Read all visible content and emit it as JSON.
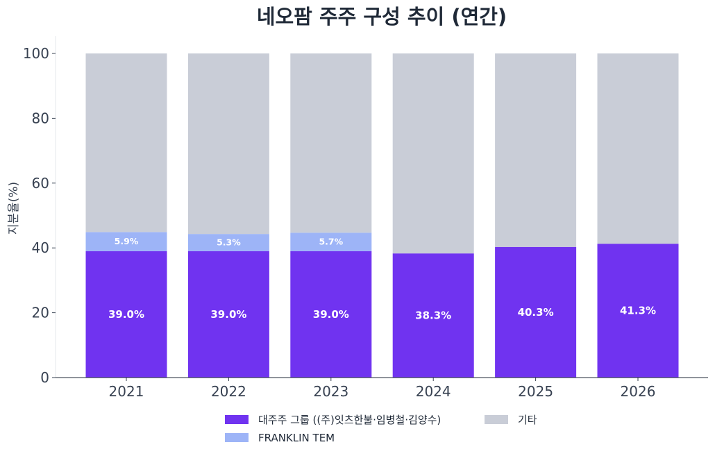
{
  "chart_data": {
    "type": "bar",
    "stacked": true,
    "title": "네오팜 주주 구성 추이 (연간)",
    "ylabel": "지분율(%)",
    "xlabel": "",
    "ylim": [
      0,
      100
    ],
    "yticks": [
      0,
      20,
      40,
      60,
      80,
      100
    ],
    "categories": [
      "2021",
      "2022",
      "2023",
      "2024",
      "2025",
      "2026"
    ],
    "series": [
      {
        "name": "대주주 그룹 ((주)잇츠한불·임병철·김양수)",
        "color": "#7033f0",
        "values": [
          39.0,
          39.0,
          39.0,
          38.3,
          40.3,
          41.3
        ],
        "labels": [
          "39.0%",
          "39.0%",
          "39.0%",
          "38.3%",
          "40.3%",
          "41.3%"
        ]
      },
      {
        "name": "FRANKLIN TEM",
        "color": "#9db4f7",
        "values": [
          5.9,
          5.3,
          5.7,
          0,
          0,
          0
        ],
        "labels": [
          "5.9%",
          "5.3%",
          "5.7%",
          "",
          "",
          ""
        ]
      },
      {
        "name": "기타",
        "color": "#c9cdd7",
        "values": [
          55.1,
          55.7,
          55.3,
          61.7,
          59.7,
          58.7
        ],
        "labels": [
          "",
          "",
          "",
          "",
          "",
          ""
        ]
      }
    ],
    "legend_position": "bottom-center",
    "grid": false
  }
}
